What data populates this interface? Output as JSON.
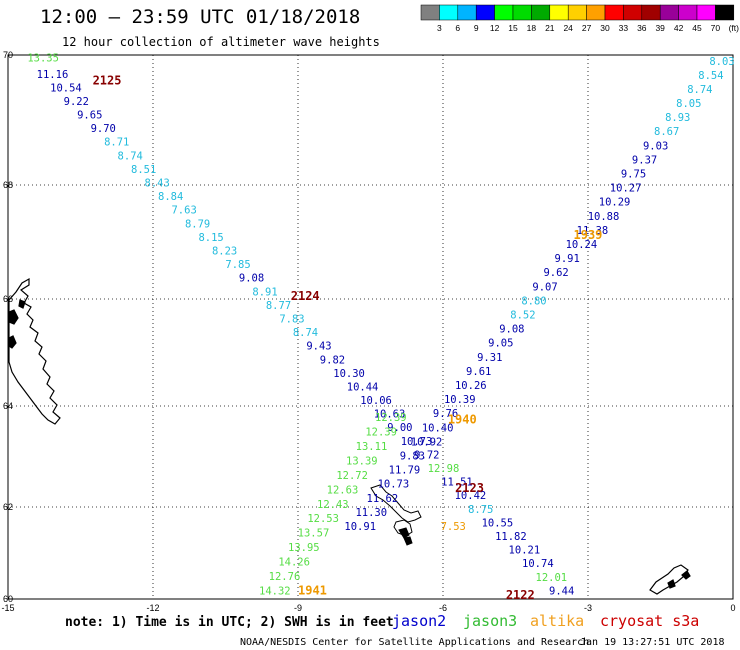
{
  "header": {
    "title": "12:00 — 23:59 UTC 01/18/2018",
    "subtitle": "12 hour collection of altimeter wave heights"
  },
  "color_scale": {
    "colors": [
      "#808080",
      "#00ffff",
      "#00b4ff",
      "#0000ff",
      "#00ff00",
      "#00dc00",
      "#00aa00",
      "#ffff00",
      "#ffd000",
      "#ffa000",
      "#ff0000",
      "#d00000",
      "#a00000",
      "#990099",
      "#cc00cc",
      "#ff00ff",
      "#000000"
    ],
    "labels": [
      "3",
      "6",
      "9",
      "12",
      "15",
      "18",
      "21",
      "24",
      "27",
      "30",
      "33",
      "36",
      "39",
      "42",
      "45",
      "70",
      "(ft)"
    ]
  },
  "axes": {
    "lat_labels": [
      "70",
      "68",
      "66",
      "64",
      "62",
      "60"
    ],
    "lon_labels": [
      "-15",
      "-12",
      "-9",
      "-6",
      "-3",
      "0"
    ],
    "lat_range": [
      60,
      70
    ],
    "lon_range": [
      -15,
      0
    ]
  },
  "legend": {
    "note": "note: 1) Time is in UTC; 2) SWH is in feet",
    "satellites": [
      {
        "name": "jason2",
        "color": "#0000cc"
      },
      {
        "name": "jason3",
        "color": "#33bb33"
      },
      {
        "name": "altika",
        "color": "#f0a020"
      },
      {
        "name": "cryosat s3a",
        "color": "#cc0000"
      }
    ]
  },
  "credit": {
    "left": "NOAA/NESDIS Center for Satellite Applications and Research",
    "right": "Jan 19 13:27:51 UTC 2018"
  },
  "map": {
    "label_colors": {
      "green": "#55dd44",
      "cyan": "#22bbdd",
      "navy": "#0000aa",
      "maroon": "#880000",
      "orange": "#ee9900"
    },
    "tracks": [
      {
        "name": "track-a",
        "start": [
          -14.2,
          69.65
        ],
        "end": [
          -3.6,
          60.1
        ],
        "offset_x": -10,
        "values": [
          {
            "v": "11.16",
            "c": "navy"
          },
          {
            "v": "10.54",
            "c": "navy"
          },
          {
            "v": "9.22",
            "c": "navy"
          },
          {
            "v": "9.65",
            "c": "navy"
          },
          {
            "v": "9.70",
            "c": "navy"
          },
          {
            "v": "8.71",
            "c": "cyan"
          },
          {
            "v": "8.74",
            "c": "cyan"
          },
          {
            "v": "8.51",
            "c": "cyan"
          },
          {
            "v": "8.43",
            "c": "cyan"
          },
          {
            "v": "8.84",
            "c": "cyan"
          },
          {
            "v": "7.63",
            "c": "cyan"
          },
          {
            "v": "8.79",
            "c": "cyan"
          },
          {
            "v": "8.15",
            "c": "cyan"
          },
          {
            "v": "8.23",
            "c": "cyan"
          },
          {
            "v": "7.85",
            "c": "cyan"
          },
          {
            "v": "9.08",
            "c": "navy"
          },
          {
            "v": "8.91",
            "c": "cyan"
          },
          {
            "v": "8.77",
            "c": "cyan"
          },
          {
            "v": "7.83",
            "c": "cyan"
          },
          {
            "v": "8.74",
            "c": "cyan"
          },
          {
            "v": "9.43",
            "c": "navy"
          },
          {
            "v": "9.82",
            "c": "navy"
          },
          {
            "v": "10.30",
            "c": "navy"
          },
          {
            "v": "10.44",
            "c": "navy"
          },
          {
            "v": "10.06",
            "c": "navy"
          },
          {
            "v": "10.63",
            "c": "navy"
          },
          {
            "v": "9.00",
            "c": "navy"
          },
          {
            "v": "10.73",
            "c": "navy"
          },
          {
            "v": "9.72",
            "c": "navy"
          },
          {
            "v": "12.98",
            "c": "green"
          },
          {
            "v": "11.51",
            "c": "navy"
          },
          {
            "v": "10.42",
            "c": "navy"
          },
          {
            "v": "8.75",
            "c": "cyan"
          },
          {
            "v": "10.55",
            "c": "navy"
          },
          {
            "v": "11.82",
            "c": "navy"
          },
          {
            "v": "10.21",
            "c": "navy"
          },
          {
            "v": "10.74",
            "c": "navy"
          },
          {
            "v": "12.01",
            "c": "green"
          },
          {
            "v": "9.44",
            "c": "navy"
          }
        ]
      },
      {
        "name": "track-b",
        "start": [
          -0.2,
          69.85
        ],
        "end": [
          -7.75,
          61.5
        ],
        "offset_x": -14,
        "values": [
          {
            "v": "8.03",
            "c": "cyan"
          },
          {
            "v": "8.54",
            "c": "cyan"
          },
          {
            "v": "8.74",
            "c": "cyan"
          },
          {
            "v": "8.05",
            "c": "cyan"
          },
          {
            "v": "8.93",
            "c": "cyan"
          },
          {
            "v": "8.67",
            "c": "cyan"
          },
          {
            "v": "9.03",
            "c": "navy"
          },
          {
            "v": "9.37",
            "c": "navy"
          },
          {
            "v": "9.75",
            "c": "navy"
          },
          {
            "v": "10.27",
            "c": "navy"
          },
          {
            "v": "10.29",
            "c": "navy"
          },
          {
            "v": "10.88",
            "c": "navy"
          },
          {
            "v": "11.38",
            "c": "navy"
          },
          {
            "v": "10.24",
            "c": "navy"
          },
          {
            "v": "9.91",
            "c": "navy"
          },
          {
            "v": "9.62",
            "c": "navy"
          },
          {
            "v": "9.07",
            "c": "navy"
          },
          {
            "v": "8.80",
            "c": "cyan"
          },
          {
            "v": "8.52",
            "c": "cyan"
          },
          {
            "v": "9.08",
            "c": "navy"
          },
          {
            "v": "9.05",
            "c": "navy"
          },
          {
            "v": "9.31",
            "c": "navy"
          },
          {
            "v": "9.61",
            "c": "navy"
          },
          {
            "v": "10.26",
            "c": "navy"
          },
          {
            "v": "10.39",
            "c": "navy"
          },
          {
            "v": "9.76",
            "c": "navy"
          },
          {
            "v": "10.40",
            "c": "navy"
          },
          {
            "v": "10.92",
            "c": "navy"
          },
          {
            "v": "9.83",
            "c": "navy"
          },
          {
            "v": "11.79",
            "c": "navy"
          },
          {
            "v": "10.73",
            "c": "navy"
          },
          {
            "v": "11.62",
            "c": "navy"
          },
          {
            "v": "11.30",
            "c": "navy"
          },
          {
            "v": "10.91",
            "c": "navy"
          }
        ]
      },
      {
        "name": "track-c",
        "start": [
          -7.2,
          63.7
        ],
        "end": [
          -9.6,
          60.1
        ],
        "offset_x": -10,
        "values": [
          {
            "v": "12.39",
            "c": "green"
          },
          {
            "v": "12.39",
            "c": "green"
          },
          {
            "v": "13.11",
            "c": "green"
          },
          {
            "v": "13.39",
            "c": "green"
          },
          {
            "v": "12.72",
            "c": "green"
          },
          {
            "v": "12.63",
            "c": "green"
          },
          {
            "v": "12.43",
            "c": "green"
          },
          {
            "v": "12.53",
            "c": "green"
          },
          {
            "v": "13.57",
            "c": "green"
          },
          {
            "v": "13.95",
            "c": "green"
          },
          {
            "v": "14.26",
            "c": "green"
          },
          {
            "v": "12.76",
            "c": "green"
          },
          {
            "v": "14.32",
            "c": "green"
          }
        ]
      }
    ],
    "singles": [
      {
        "v": "13.35",
        "c": "green",
        "lon": -14.6,
        "lat": 69.9
      },
      {
        "v": "7.53",
        "c": "orange",
        "lon": -6.05,
        "lat": 61.5
      }
    ],
    "pass_times": [
      {
        "v": "2125",
        "c": "maroon",
        "lon": -13.25,
        "lat": 69.55
      },
      {
        "v": "2124",
        "c": "maroon",
        "lon": -9.15,
        "lat": 65.98
      },
      {
        "v": "1939",
        "c": "orange",
        "lon": -3.3,
        "lat": 67.05
      },
      {
        "v": "1940",
        "c": "orange",
        "lon": -5.9,
        "lat": 63.65
      },
      {
        "v": "2123",
        "c": "maroon",
        "lon": -5.75,
        "lat": 62.3
      },
      {
        "v": "1941",
        "c": "orange",
        "lon": -9.0,
        "lat": 60.1
      },
      {
        "v": "2122",
        "c": "maroon",
        "lon": -4.7,
        "lat": 60.0
      }
    ]
  }
}
